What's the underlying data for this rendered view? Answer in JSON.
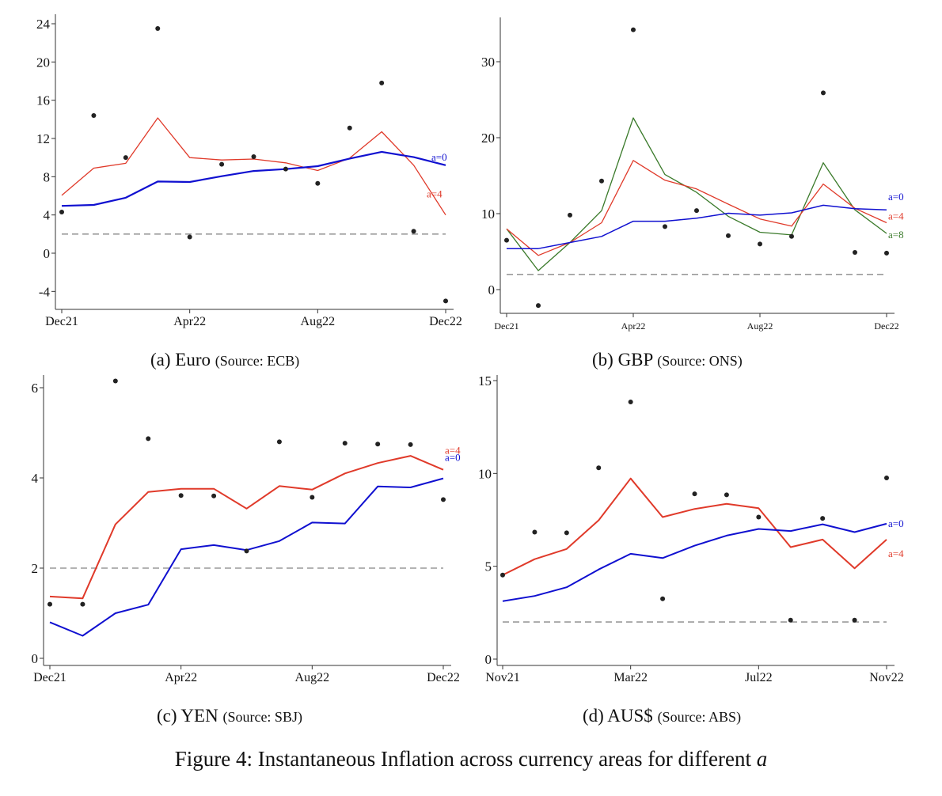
{
  "figure": {
    "caption_prefix": "Figure 4: Instantaneous Inflation across currency areas for different ",
    "caption_var": "a"
  },
  "colors": {
    "a0": "#1010d0",
    "a4": "#e03a2a",
    "a8": "#3a7a2a",
    "dots": "#222222",
    "target": "#9a9a9a",
    "axis": "#333333"
  },
  "chart_data": [
    {
      "id": "euro",
      "type": "line",
      "caption_label": "(a) Euro",
      "caption_source": "(Source: ECB)",
      "title": "",
      "xlabel": "",
      "ylabel": "",
      "x": [
        "Dec21",
        "Jan22",
        "Feb22",
        "Mar22",
        "Apr22",
        "May22",
        "Jun22",
        "Jul22",
        "Aug22",
        "Sep22",
        "Oct22",
        "Nov22",
        "Dec22"
      ],
      "xticks": [
        "Dec21",
        "Apr22",
        "Aug22",
        "Dec22"
      ],
      "yticks": [
        -4,
        0,
        4,
        8,
        12,
        16,
        20,
        24
      ],
      "ylim": [
        -6,
        25
      ],
      "target": 2,
      "grid": false,
      "scatter": {
        "name": "observed",
        "values": [
          4.3,
          14.4,
          10.0,
          23.5,
          1.7,
          9.3,
          10.1,
          8.8,
          7.3,
          13.1,
          17.8,
          2.3,
          -5.0
        ]
      },
      "series": [
        {
          "name": "a=0",
          "color_key": "a0",
          "width": 2.2,
          "values": [
            4.95,
            5.05,
            5.8,
            7.5,
            7.45,
            8.05,
            8.6,
            8.8,
            9.1,
            9.9,
            10.6,
            10.05,
            9.2
          ]
        },
        {
          "name": "a=4",
          "color_key": "a4",
          "width": 1.3,
          "values": [
            6.05,
            8.9,
            9.4,
            14.15,
            10.0,
            9.75,
            9.85,
            9.45,
            8.65,
            9.95,
            12.7,
            9.2,
            4.0
          ]
        }
      ]
    },
    {
      "id": "gbp",
      "type": "line",
      "caption_label": "(b) GBP",
      "caption_source": "(Source: ONS)",
      "title": "",
      "xlabel": "",
      "ylabel": "",
      "x": [
        "Dec21",
        "Jan22",
        "Feb22",
        "Mar22",
        "Apr22",
        "May22",
        "Jun22",
        "Jul22",
        "Aug22",
        "Sep22",
        "Oct22",
        "Nov22",
        "Dec22"
      ],
      "xticks": [
        "Dec21",
        "Apr22",
        "Aug22",
        "Dec22"
      ],
      "yticks": [
        0,
        10,
        20,
        30
      ],
      "ylim": [
        -3,
        36
      ],
      "target": 2,
      "grid": false,
      "scatter": {
        "name": "observed",
        "values": [
          6.5,
          -2.1,
          9.8,
          14.3,
          34.2,
          8.3,
          10.4,
          7.1,
          6.0,
          7.0,
          25.9,
          4.9,
          4.8
        ]
      },
      "series": [
        {
          "name": "a=0",
          "color_key": "a0",
          "width": 1.5,
          "values": [
            5.4,
            5.4,
            6.2,
            7.0,
            9.0,
            9.0,
            9.4,
            10.05,
            9.8,
            10.1,
            11.1,
            10.65,
            10.5
          ]
        },
        {
          "name": "a=4",
          "color_key": "a4",
          "width": 1.3,
          "values": [
            8.0,
            4.5,
            6.2,
            8.8,
            17.0,
            14.4,
            13.25,
            11.25,
            9.3,
            8.35,
            13.9,
            10.7,
            8.8
          ]
        },
        {
          "name": "a=8",
          "color_key": "a8",
          "width": 1.3,
          "values": [
            8.0,
            2.5,
            6.2,
            10.4,
            22.6,
            15.15,
            12.8,
            9.65,
            7.55,
            7.2,
            16.7,
            10.5,
            7.4
          ]
        }
      ]
    },
    {
      "id": "yen",
      "type": "line",
      "caption_label": "(c) YEN",
      "caption_source": "(Source: SBJ)",
      "title": "",
      "xlabel": "",
      "ylabel": "",
      "x": [
        "Dec21",
        "Jan22",
        "Feb22",
        "Mar22",
        "Apr22",
        "May22",
        "Jun22",
        "Jul22",
        "Aug22",
        "Sep22",
        "Oct22",
        "Nov22",
        "Dec22"
      ],
      "xticks": [
        "Dec21",
        "Apr22",
        "Aug22",
        "Dec22"
      ],
      "yticks": [
        0,
        2,
        4,
        6
      ],
      "ylim": [
        -0.15,
        6.3
      ],
      "target": 2,
      "grid": false,
      "scatter": {
        "name": "observed",
        "values": [
          1.2,
          1.2,
          6.15,
          4.87,
          3.61,
          3.6,
          2.38,
          4.8,
          3.57,
          4.77,
          4.75,
          4.74,
          3.52
        ]
      },
      "series": [
        {
          "name": "a=0",
          "color_key": "a0",
          "width": 2.0,
          "values": [
            0.8,
            0.5,
            1.0,
            1.19,
            2.42,
            2.51,
            2.4,
            2.6,
            3.01,
            2.99,
            3.81,
            3.79,
            3.99
          ]
        },
        {
          "name": "a=4",
          "color_key": "a4",
          "width": 2.0,
          "values": [
            1.37,
            1.33,
            2.97,
            3.69,
            3.76,
            3.76,
            3.32,
            3.82,
            3.74,
            4.1,
            4.33,
            4.49,
            4.18
          ]
        }
      ]
    },
    {
      "id": "ausd",
      "type": "line",
      "caption_label": "(d) AUS$",
      "caption_source": "(Source: ABS)",
      "title": "",
      "xlabel": "",
      "ylabel": "",
      "x": [
        "Nov21",
        "Dec21",
        "Jan22",
        "Feb22",
        "Mar22",
        "Apr22",
        "May22",
        "Jun22",
        "Jul22",
        "Aug22",
        "Sep22",
        "Oct22",
        "Nov22"
      ],
      "xticks": [
        "Nov21",
        "Mar22",
        "Jul22",
        "Nov22"
      ],
      "yticks": [
        0,
        5,
        10,
        15
      ],
      "ylim": [
        -0.4,
        15.4
      ],
      "target": 2,
      "grid": false,
      "scatter": {
        "name": "observed",
        "values": [
          4.53,
          6.84,
          6.8,
          10.3,
          13.85,
          3.25,
          8.9,
          8.85,
          7.65,
          2.1,
          7.58,
          2.1,
          9.76
        ]
      },
      "series": [
        {
          "name": "a=0",
          "color_key": "a0",
          "width": 2.0,
          "values": [
            3.12,
            3.4,
            3.87,
            4.83,
            5.67,
            5.44,
            6.11,
            6.65,
            7.01,
            6.9,
            7.26,
            6.84,
            7.29
          ]
        },
        {
          "name": "a=4",
          "color_key": "a4",
          "width": 2.0,
          "values": [
            4.53,
            5.38,
            5.93,
            7.48,
            9.73,
            7.65,
            8.09,
            8.36,
            8.13,
            6.03,
            6.44,
            4.89,
            6.44
          ]
        }
      ]
    }
  ]
}
